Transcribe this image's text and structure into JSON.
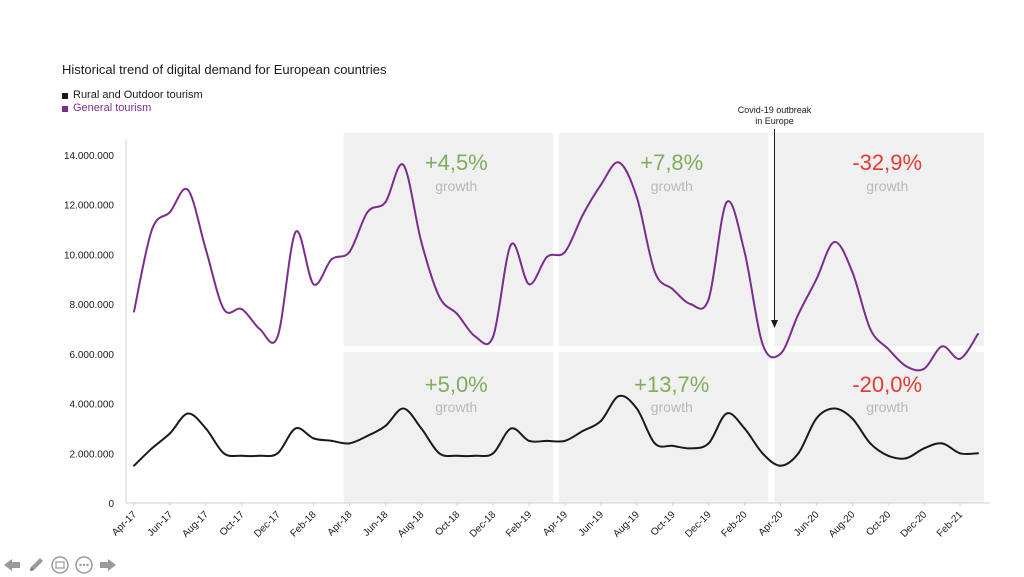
{
  "chart_data": {
    "type": "line",
    "title": "Historical trend of digital demand for European countries",
    "x": [
      "Apr-17",
      "May-17",
      "Jun-17",
      "Jul-17",
      "Aug-17",
      "Sep-17",
      "Oct-17",
      "Nov-17",
      "Dec-17",
      "Jan-18",
      "Feb-18",
      "Mar-18",
      "Apr-18",
      "May-18",
      "Jun-18",
      "Jul-18",
      "Aug-18",
      "Sep-18",
      "Oct-18",
      "Nov-18",
      "Dec-18",
      "Jan-19",
      "Feb-19",
      "Mar-19",
      "Apr-19",
      "May-19",
      "Jun-19",
      "Jul-19",
      "Aug-19",
      "Sep-19",
      "Oct-19",
      "Nov-19",
      "Dec-19",
      "Jan-20",
      "Feb-20",
      "Mar-20",
      "Apr-20",
      "May-20",
      "Jun-20",
      "Jul-20",
      "Aug-20",
      "Sep-20",
      "Oct-20",
      "Nov-20",
      "Dec-20",
      "Jan-21",
      "Feb-21",
      "Mar-21"
    ],
    "x_tick_labels": [
      "Apr-17",
      "Jun-17",
      "Aug-17",
      "Oct-17",
      "Dec-17",
      "Feb-18",
      "Apr-18",
      "Jun-18",
      "Aug-18",
      "Oct-18",
      "Dec-18",
      "Feb-19",
      "Apr-19",
      "Jun-19",
      "Aug-19",
      "Oct-19",
      "Dec-19",
      "Feb-20",
      "Apr-20",
      "Jun-20",
      "Aug-20",
      "Oct-20",
      "Dec-20",
      "Feb-21"
    ],
    "y_tick_labels": [
      "0",
      "2.000.000",
      "4.000.000",
      "6.000.000",
      "8.000.000",
      "10.000.000",
      "12.000.000",
      "14.000.000"
    ],
    "ylim": [
      0,
      14000000
    ],
    "series": [
      {
        "name": "General tourism",
        "color": "#7b2d8e",
        "values": [
          7700000,
          11000000,
          11700000,
          12600000,
          10200000,
          7800000,
          7800000,
          7000000,
          6700000,
          10900000,
          8800000,
          9800000,
          10100000,
          11700000,
          12100000,
          13600000,
          10500000,
          8300000,
          7600000,
          6700000,
          6700000,
          10400000,
          8800000,
          9900000,
          10100000,
          11600000,
          12800000,
          13700000,
          12300000,
          9300000,
          8600000,
          8000000,
          8200000,
          12100000,
          10100000,
          6400000,
          6000000,
          7600000,
          9000000,
          10500000,
          9300000,
          7000000,
          6200000,
          5500000,
          5400000,
          6300000,
          5800000,
          6800000
        ]
      },
      {
        "name": "Rural and Outdoor tourism",
        "color": "#1a1a1a",
        "values": [
          1500000,
          2200000,
          2800000,
          3600000,
          3000000,
          2000000,
          1900000,
          1900000,
          2000000,
          3000000,
          2600000,
          2500000,
          2400000,
          2700000,
          3100000,
          3800000,
          3000000,
          2000000,
          1900000,
          1900000,
          2000000,
          3000000,
          2500000,
          2500000,
          2500000,
          2900000,
          3300000,
          4300000,
          3800000,
          2400000,
          2300000,
          2200000,
          2400000,
          3600000,
          3000000,
          2000000,
          1500000,
          2000000,
          3400000,
          3800000,
          3400000,
          2400000,
          1900000,
          1800000,
          2200000,
          2400000,
          2000000,
          2000000
        ]
      }
    ],
    "periods": [
      {
        "start": "Apr-18",
        "end": "Mar-19",
        "upper": {
          "value": "+4,5%",
          "label": "growth"
        },
        "lower": {
          "value": "+5,0%",
          "label": "growth"
        }
      },
      {
        "start": "Apr-19",
        "end": "Mar-20",
        "upper": {
          "value": "+7,8%",
          "label": "growth"
        },
        "lower": {
          "value": "+13,7%",
          "label": "growth"
        }
      },
      {
        "start": "Apr-20",
        "end": "Mar-21",
        "upper": {
          "value": "-32,9%",
          "label": "growth"
        },
        "lower": {
          "value": "-20,0%",
          "label": "growth"
        }
      }
    ],
    "annotation": {
      "line1": "Covid-19 outbreak",
      "line2": "in Europe"
    },
    "colors": {
      "positive": "#7fad5c",
      "negative": "#e53935",
      "growth_label": "#b8b8b8",
      "band": "#f0f0f0"
    },
    "grid": false,
    "legend_position": "top-left"
  },
  "legend": [
    {
      "label": "Rural and Outdoor tourism",
      "color": "#1a1a1a"
    },
    {
      "label": "General tourism",
      "color": "#7b2d8e"
    }
  ],
  "toolbar": [
    {
      "icon": "arrow-left-icon"
    },
    {
      "icon": "pen-icon"
    },
    {
      "icon": "slides-icon"
    },
    {
      "icon": "more-icon"
    },
    {
      "icon": "arrow-right-icon"
    }
  ]
}
